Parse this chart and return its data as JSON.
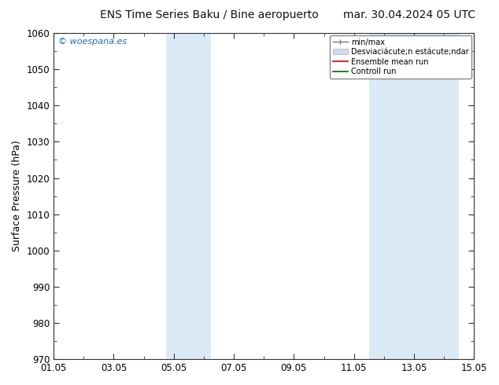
{
  "title_left": "ENS Time Series Baku / Bine aeropuerto",
  "title_right": "mar. 30.04.2024 05 UTC",
  "ylabel": "Surface Pressure (hPa)",
  "ylim": [
    970,
    1060
  ],
  "yticks": [
    970,
    980,
    990,
    1000,
    1010,
    1020,
    1030,
    1040,
    1050,
    1060
  ],
  "xlim_start": 0,
  "xlim_end": 14,
  "xtick_labels": [
    "01.05",
    "03.05",
    "05.05",
    "07.05",
    "09.05",
    "11.05",
    "13.05",
    "15.05"
  ],
  "xtick_positions": [
    0,
    2,
    4,
    6,
    8,
    10,
    12,
    14
  ],
  "shaded_bands": [
    {
      "xmin": 3.75,
      "xmax": 5.25,
      "color": "#daeaf7"
    },
    {
      "xmin": 10.5,
      "xmax": 13.5,
      "color": "#daeaf7"
    }
  ],
  "watermark": "© woespana.es",
  "watermark_color": "#1a6bbf",
  "bg_color": "#ffffff",
  "plot_bg_color": "#ffffff",
  "spine_color": "#333333",
  "title_fontsize": 10,
  "axis_label_fontsize": 9,
  "tick_fontsize": 8.5,
  "legend_label_std": "Desviaciácute;n estácute;ndar",
  "legend_std_color": "#ccddee",
  "legend_std_edge": "#aaaaaa"
}
